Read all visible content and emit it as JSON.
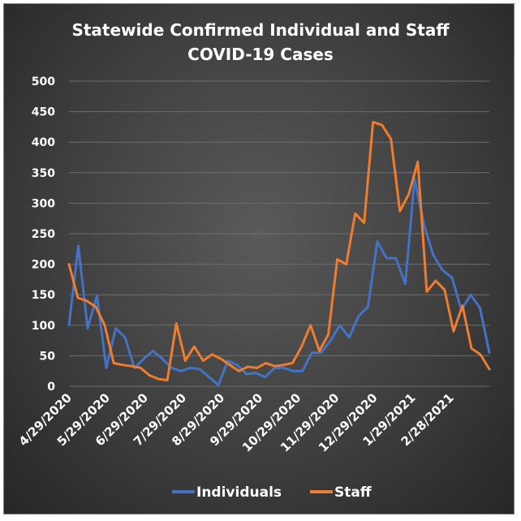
{
  "chart_data": {
    "type": "line",
    "title_lines": [
      "Statewide Confirmed Individual and Staff",
      "COVID-19 Cases"
    ],
    "xlabel": "",
    "ylabel": "",
    "ylim": [
      0,
      500
    ],
    "y_ticks": [
      0,
      50,
      100,
      150,
      200,
      250,
      300,
      350,
      400,
      450,
      500
    ],
    "x_tick_labels": [
      "4/29/2020",
      "5/29/2020",
      "6/29/2020",
      "7/29/2020",
      "8/29/2020",
      "9/29/2020",
      "10/29/2020",
      "11/29/2020",
      "12/29/2020",
      "1/29/2021",
      "2/28/2021"
    ],
    "grid": true,
    "legend_position": "bottom",
    "series": [
      {
        "name": "Individuals",
        "color": "#4472c4",
        "values": [
          100,
          230,
          95,
          148,
          30,
          95,
          80,
          30,
          45,
          58,
          45,
          30,
          25,
          30,
          28,
          15,
          2,
          42,
          35,
          20,
          22,
          15,
          30,
          30,
          25,
          25,
          55,
          55,
          75,
          100,
          80,
          115,
          130,
          237,
          210,
          210,
          168,
          340,
          265,
          215,
          190,
          178,
          125,
          150,
          128,
          55
        ]
      },
      {
        "name": "Staff",
        "color": "#ed7d31",
        "values": [
          200,
          145,
          140,
          130,
          100,
          38,
          35,
          33,
          30,
          18,
          12,
          10,
          103,
          42,
          65,
          42,
          52,
          45,
          35,
          25,
          32,
          30,
          38,
          33,
          35,
          38,
          65,
          100,
          58,
          85,
          208,
          200,
          283,
          268,
          433,
          428,
          405,
          287,
          315,
          368,
          155,
          173,
          158,
          90,
          132,
          62,
          52,
          28
        ]
      }
    ]
  }
}
